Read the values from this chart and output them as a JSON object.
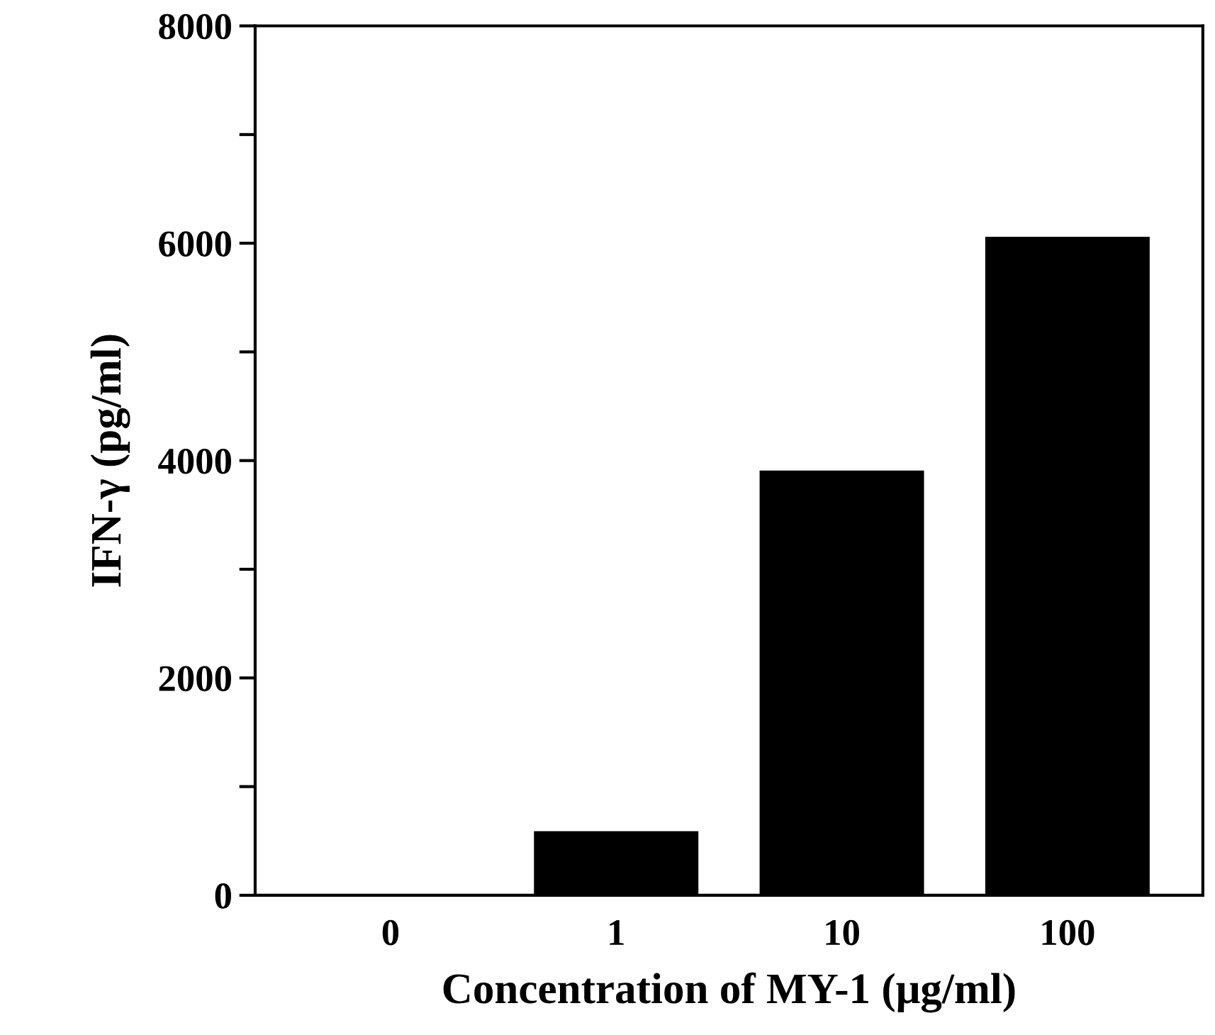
{
  "chart_data": {
    "type": "bar",
    "xlabel": "Concentration of MY-1 (μg/ml)",
    "ylabel": "IFN-γ (pg/ml)",
    "categories": [
      "0",
      "1",
      "10",
      "100"
    ],
    "values": [
      0,
      580,
      3900,
      6050
    ],
    "color": "#000000",
    "ylim": [
      0,
      8000
    ],
    "yticks": [
      0,
      {
        "value": 1000,
        "label": null
      },
      2000,
      {
        "value": 3000,
        "label": null
      },
      4000,
      {
        "value": 5000,
        "label": null
      },
      6000,
      {
        "value": 7000,
        "label": null
      },
      8000
    ],
    "grid": false,
    "legend": false
  }
}
